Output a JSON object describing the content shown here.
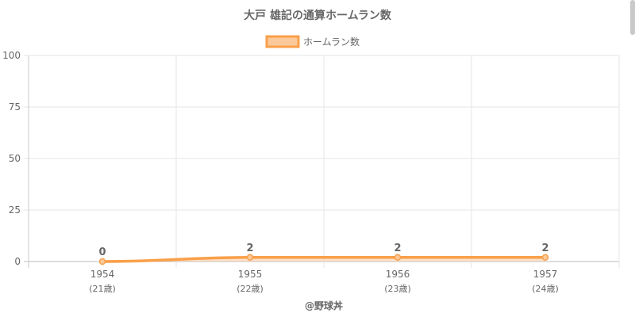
{
  "chart_data": {
    "type": "line",
    "title": "大戸 雄記の通算ホームラン数",
    "categories": [
      "1954",
      "1955",
      "1956",
      "1957"
    ],
    "category_sublabels": [
      "(21歳)",
      "(22歳)",
      "(23歳)",
      "(24歳)"
    ],
    "series": [
      {
        "name": "ホームラン数",
        "values": [
          0,
          2,
          2,
          2
        ]
      }
    ],
    "data_labels": [
      "0",
      "2",
      "2",
      "2"
    ],
    "ylim": [
      0,
      100
    ],
    "yticks": [
      "0",
      "25",
      "50",
      "75",
      "100"
    ],
    "ytick_values": [
      0,
      25,
      50,
      75,
      100
    ],
    "grid": true,
    "legend_position": "top",
    "colors": {
      "line": "#f9a04a",
      "fill": "#fbc99a",
      "grid": "#e6e6e6",
      "axis": "#c8c8c8",
      "text": "#666666"
    }
  },
  "footer": {
    "credit": "@野球丼"
  }
}
